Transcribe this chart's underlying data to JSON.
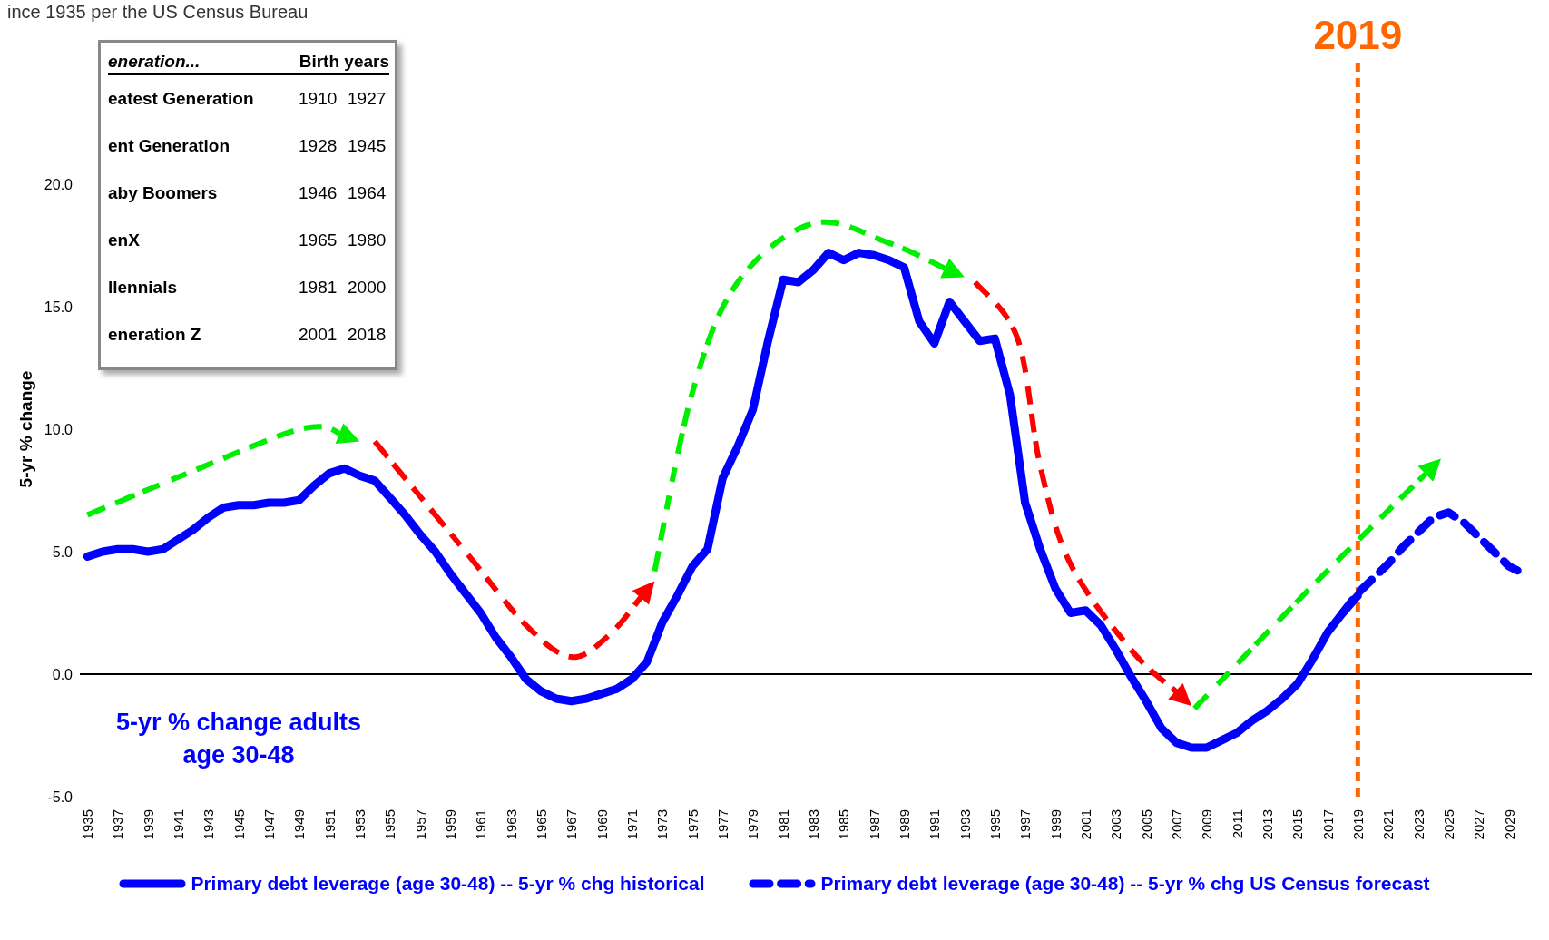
{
  "chart_data": {
    "type": "line",
    "title": "ince 1935 per the US Census Bureau",
    "ylabel": "5-yr % change",
    "x": [
      1935,
      1936,
      1937,
      1938,
      1939,
      1940,
      1941,
      1942,
      1943,
      1944,
      1945,
      1946,
      1947,
      1948,
      1949,
      1950,
      1951,
      1952,
      1953,
      1954,
      1955,
      1956,
      1957,
      1958,
      1959,
      1960,
      1961,
      1962,
      1963,
      1964,
      1965,
      1966,
      1967,
      1968,
      1969,
      1970,
      1971,
      1972,
      1973,
      1974,
      1975,
      1976,
      1977,
      1978,
      1979,
      1980,
      1981,
      1982,
      1983,
      1984,
      1985,
      1986,
      1987,
      1988,
      1989,
      1990,
      1991,
      1992,
      1993,
      1994,
      1995,
      1996,
      1997,
      1998,
      1999,
      2000,
      2001,
      2002,
      2003,
      2004,
      2005,
      2006,
      2007,
      2008,
      2009,
      2010,
      2011,
      2012,
      2013,
      2014,
      2015,
      2016,
      2017,
      2018,
      2019
    ],
    "series": [
      {
        "name": "Primary debt leverage (age 30-48) -- 5-yr % chg historical",
        "color": "#0000ff",
        "line_style": "solid",
        "values": [
          4.8,
          5.0,
          5.1,
          5.1,
          5.0,
          5.1,
          5.5,
          5.9,
          6.4,
          6.8,
          6.9,
          6.9,
          7.0,
          7.0,
          7.1,
          7.7,
          8.2,
          8.4,
          8.1,
          7.9,
          7.2,
          6.5,
          5.7,
          5.0,
          4.1,
          3.3,
          2.5,
          1.5,
          0.7,
          -0.2,
          -0.7,
          -1.0,
          -1.1,
          -1.0,
          -0.8,
          -0.6,
          -0.2,
          0.5,
          2.1,
          3.2,
          4.4,
          5.1,
          8.0,
          9.3,
          10.8,
          13.6,
          16.1,
          16.0,
          16.5,
          17.2,
          16.9,
          17.2,
          17.1,
          16.9,
          16.6,
          14.4,
          13.5,
          15.2,
          14.4,
          13.6,
          13.7,
          11.4,
          7.0,
          5.1,
          3.5,
          2.5,
          2.6,
          2.0,
          1.0,
          -0.1,
          -1.1,
          -2.2,
          -2.8,
          -3.0,
          -3.0,
          -2.7,
          -2.4,
          -1.9,
          -1.5,
          -1.0,
          -0.4,
          0.6,
          1.7,
          2.5,
          3.2
        ]
      },
      {
        "name": "Primary debt leverage (age 30-48) -- 5-yr % chg US Census forecast",
        "color": "#0000ff",
        "line_style": "dashed",
        "x": [
          2018,
          2019,
          2020,
          2021,
          2022,
          2023,
          2024,
          2025,
          2026,
          2027,
          2028,
          2029,
          2030
        ],
        "values": [
          2.5,
          3.3,
          3.9,
          4.5,
          5.2,
          5.8,
          6.4,
          6.6,
          6.2,
          5.6,
          5.0,
          4.4,
          4.1
        ]
      }
    ],
    "xlim": [
      1934.5,
      2030.5
    ],
    "xticks": [
      1935,
      1937,
      1939,
      1941,
      1943,
      1945,
      1947,
      1949,
      1951,
      1953,
      1955,
      1957,
      1959,
      1961,
      1963,
      1965,
      1967,
      1969,
      1971,
      1973,
      1975,
      1977,
      1979,
      1981,
      1983,
      1985,
      1987,
      1989,
      1991,
      1993,
      1995,
      1997,
      1999,
      2001,
      2003,
      2005,
      2007,
      2009,
      2011,
      2013,
      2015,
      2017,
      2019,
      2021,
      2023,
      2025,
      2027,
      2029
    ],
    "ylim": [
      -5,
      25
    ],
    "yticks": [
      {
        "value": -5,
        "label": "-5.0"
      },
      {
        "value": 0,
        "label": "0.0"
      },
      {
        "value": 5,
        "label": "5.0"
      },
      {
        "value": 10,
        "label": "10.0"
      },
      {
        "value": 15,
        "label": "15.0"
      },
      {
        "value": 20,
        "label": "20.0"
      }
    ],
    "ref_lines": [
      {
        "axis": "x",
        "value": 2019,
        "label": "2019",
        "color": "#ff6600",
        "line_style": "dashed"
      },
      {
        "axis": "y",
        "value": 0,
        "color": "#000000",
        "line_style": "solid"
      }
    ],
    "annotations": [
      "5-yr % change adults\nage 30-48",
      "eneration...",
      "Birth years",
      "eatest Generation",
      "1910",
      "1927",
      "ent Generation",
      "1928",
      "1945",
      "aby Boomers",
      "1946",
      "1964",
      "enX",
      "1965",
      "1980",
      "llennials",
      "1981",
      "2000",
      "eneration Z",
      "2001",
      "2018"
    ],
    "legend": "bottom",
    "marker": "none"
  }
}
